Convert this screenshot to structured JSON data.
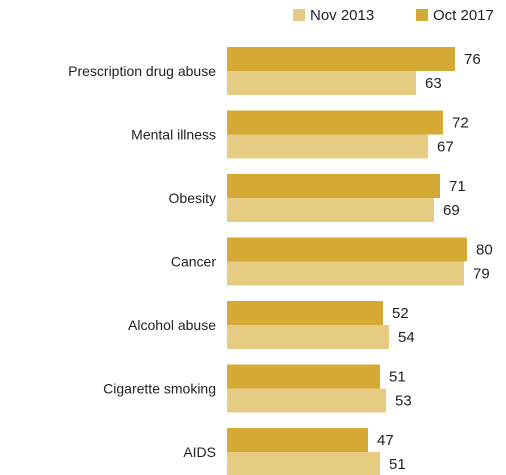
{
  "chart_data": {
    "type": "bar",
    "orientation": "horizontal",
    "legend": {
      "position": "top-right"
    },
    "xlim": [
      0,
      100
    ],
    "categories": [
      "Prescription drug abuse",
      "Mental illness",
      "Obesity",
      "Cancer",
      "Alcohol abuse",
      "Cigarette smoking",
      "AIDS"
    ],
    "series": [
      {
        "name": "Oct 2017",
        "color": "#d4a934",
        "values": [
          76,
          72,
          71,
          80,
          52,
          51,
          47
        ]
      },
      {
        "name": "Nov 2013",
        "color": "#e6cb83",
        "values": [
          63,
          67,
          69,
          79,
          54,
          53,
          51
        ]
      }
    ]
  }
}
